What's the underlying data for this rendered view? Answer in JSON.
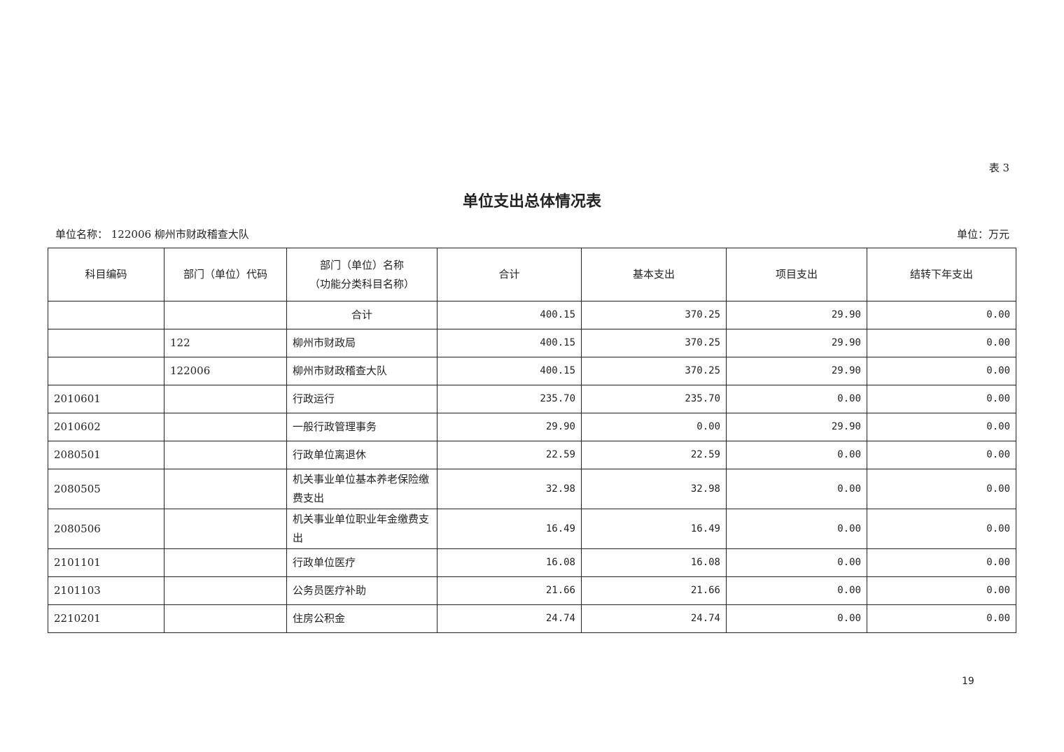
{
  "table_no": "表 3",
  "title": "单位支出总体情况表",
  "unit_name": "单位名称：  122006 柳州市财政稽查大队",
  "unit": "单位：万元",
  "headers": [
    "科目编码",
    "部门（单位）代码",
    "部门（单位）名称",
    "（功能分类科目名称）",
    "合计",
    "基本支出",
    "项目支出",
    "结转下年支出"
  ],
  "rows": [
    [
      "",
      "",
      "合计",
      "400.15",
      "370.25",
      "29.90",
      "0.00"
    ],
    [
      "",
      "122",
      "柳州市财政局",
      "400.15",
      "370.25",
      "29.90",
      "0.00"
    ],
    [
      "",
      "122006",
      "柳州市财政稽查大队",
      "400.15",
      "370.25",
      "29.90",
      "0.00"
    ],
    [
      "2010601",
      "",
      "行政运行",
      "235.70",
      "235.70",
      "0.00",
      "0.00"
    ],
    [
      "2010602",
      "",
      "一般行政管理事务",
      "29.90",
      "0.00",
      "29.90",
      "0.00"
    ],
    [
      "2080501",
      "",
      "行政单位离退休",
      "22.59",
      "22.59",
      "0.00",
      "0.00"
    ],
    [
      "2080505",
      "",
      "机关事业单位基本养老保险缴费支出",
      "32.98",
      "32.98",
      "0.00",
      "0.00"
    ],
    [
      "2080506",
      "",
      "机关事业单位职业年金缴费支出",
      "16.49",
      "16.49",
      "0.00",
      "0.00"
    ],
    [
      "2101101",
      "",
      "行政单位医疗",
      "16.08",
      "16.08",
      "0.00",
      "0.00"
    ],
    [
      "2101103",
      "",
      "公务员医疗补助",
      "21.66",
      "21.66",
      "0.00",
      "0.00"
    ],
    [
      "2210201",
      "",
      "住房公积金",
      "24.74",
      "24.74",
      "0.00",
      "0.00"
    ]
  ],
  "page_number": "19"
}
